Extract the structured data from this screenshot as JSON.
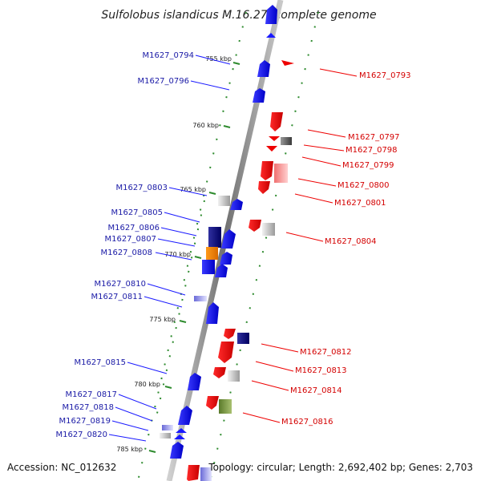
{
  "title": "Sulfolobus islandicus M.16.27, complete genome",
  "footer": {
    "accession": "Accession: NC_012632",
    "stats": "Topology: circular; Length: 2,692,402 bp; Genes: 2,703"
  },
  "ticks": [
    "755 kbp",
    "760 kbp",
    "765 kbp",
    "770 kbp",
    "775 kbp",
    "780 kbp",
    "785 kbp"
  ],
  "genes_left": [
    "M1627_0794",
    "M1627_0796",
    "M1627_0803",
    "M1627_0805",
    "M1627_0806",
    "M1627_0807",
    "M1627_0808",
    "M1627_0810",
    "M1627_0811",
    "M1627_0815",
    "M1627_0817",
    "M1627_0818",
    "M1627_0819",
    "M1627_0820"
  ],
  "genes_right": [
    "M1627_0793",
    "M1627_0797",
    "M1627_0798",
    "M1627_0799",
    "M1627_0800",
    "M1627_0801",
    "M1627_0804",
    "M1627_0812",
    "M1627_0813",
    "M1627_0814",
    "M1627_0816"
  ],
  "colors": {
    "forward": "#ff0000",
    "reverse": "#1a1aff",
    "axis": "#8a8a8a",
    "tick": "#2e8b2e",
    "label_left": "#1a1aa6",
    "label_right": "#d40000"
  }
}
